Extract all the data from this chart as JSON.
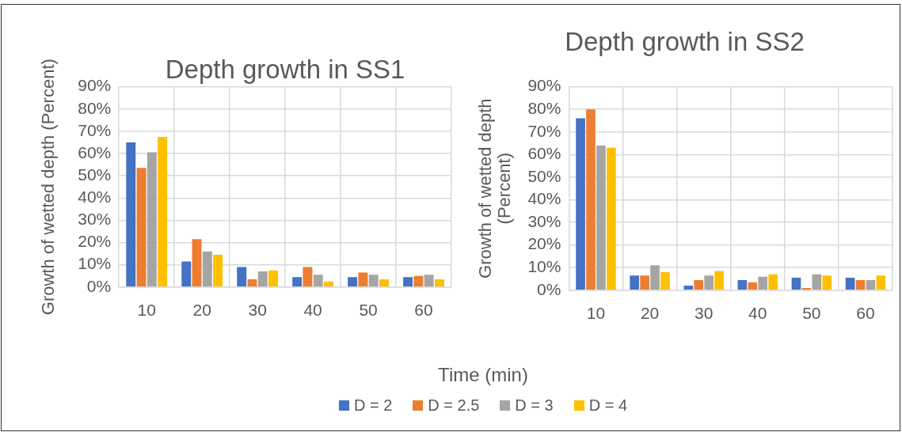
{
  "chart_data": [
    {
      "type": "bar",
      "title": "Depth growth in SS1",
      "xlabel": "Time (min)",
      "ylabel": "Growth of wetted depth (Percent)",
      "categories": [
        "10",
        "20",
        "30",
        "40",
        "50",
        "60"
      ],
      "series": [
        {
          "name": "D = 2",
          "color": "#4472c4",
          "values": [
            65,
            11.5,
            9,
            4.5,
            4.5,
            4.5
          ]
        },
        {
          "name": "D = 2.5",
          "color": "#ed7d31",
          "values": [
            53.5,
            21.5,
            3.5,
            9,
            6.5,
            5
          ]
        },
        {
          "name": "D = 3",
          "color": "#a5a5a5",
          "values": [
            60.5,
            16,
            7,
            5.5,
            5.5,
            5.5
          ]
        },
        {
          "name": "D = 4",
          "color": "#ffc000",
          "values": [
            67.5,
            14.5,
            7.5,
            2.5,
            3.5,
            3.5
          ]
        }
      ],
      "ylim": [
        0,
        90
      ],
      "yticks": [
        {
          "value": 0,
          "label": "0%"
        },
        {
          "value": 10,
          "label": "10%"
        },
        {
          "value": 20,
          "label": "20%"
        },
        {
          "value": 30,
          "label": "30%"
        },
        {
          "value": 40,
          "label": "40%"
        },
        {
          "value": 50,
          "label": "50%"
        },
        {
          "value": 60,
          "label": "60%"
        },
        {
          "value": 70,
          "label": "70%"
        },
        {
          "value": 80,
          "label": "80%"
        },
        {
          "value": 90,
          "label": "90%"
        }
      ],
      "grid": true,
      "legend": "bottom"
    },
    {
      "type": "bar",
      "title": "Depth growth in SS2",
      "ylabel": "Growth of wetted depth (Percent)",
      "categories": [
        "10",
        "20",
        "30",
        "40",
        "50",
        "60"
      ],
      "series": [
        {
          "color": "#4472c4",
          "values": [
            76,
            6.5,
            2,
            4.5,
            5.5,
            5.5
          ]
        },
        {
          "color": "#ed7d31",
          "values": [
            80,
            6.5,
            4.5,
            3.5,
            1,
            4.5
          ]
        },
        {
          "color": "#a5a5a5",
          "values": [
            64,
            11,
            6.5,
            6,
            7,
            4.5
          ]
        },
        {
          "color": "#ffc000",
          "values": [
            63,
            8,
            8.5,
            7,
            6.5,
            6.5
          ]
        }
      ],
      "ylim": [
        0,
        90
      ],
      "yticks": [
        {
          "value": 0,
          "label": "0%"
        },
        {
          "value": 10,
          "label": "10%"
        },
        {
          "value": 20,
          "label": "20%"
        },
        {
          "value": 30,
          "label": "30%"
        },
        {
          "value": 40,
          "label": "40%"
        },
        {
          "value": 50,
          "label": "50%"
        },
        {
          "value": 60,
          "label": "60%"
        },
        {
          "value": 70,
          "label": "70%"
        },
        {
          "value": 80,
          "label": "80%"
        },
        {
          "value": 90,
          "label": "90%"
        }
      ],
      "grid": true
    }
  ]
}
